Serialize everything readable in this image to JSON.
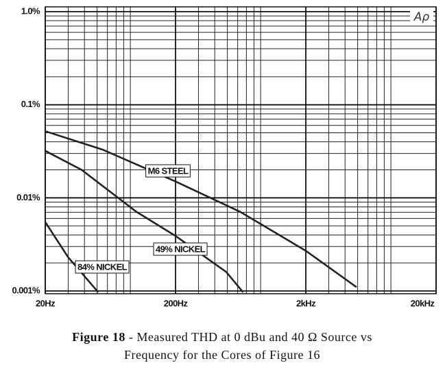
{
  "chart_data": {
    "type": "line",
    "log_x": true,
    "log_y": true,
    "grid": true,
    "minor_grid": true,
    "logo": "Aρ",
    "caption_label": "Figure 18",
    "caption_lines": [
      "- Measured THD at 0 dBu and 40 Ω Source vs",
      "Frequency for the Cores of Figure 16"
    ],
    "xlim": [
      20,
      20000
    ],
    "ylim": [
      0.001,
      1
    ],
    "xticks": [
      {
        "value": 20,
        "label": "20Hz"
      },
      {
        "value": 200,
        "label": "200Hz"
      },
      {
        "value": 2000,
        "label": "2kHz"
      },
      {
        "value": 20000,
        "label": "20kHz"
      }
    ],
    "yticks": [
      {
        "value": 0.001,
        "label": "0.001%"
      },
      {
        "value": 0.01,
        "label": "0.01%"
      },
      {
        "value": 0.1,
        "label": "0.1%"
      },
      {
        "value": 1,
        "label": "1.0%"
      }
    ],
    "series": [
      {
        "name": "M6 STEEL",
        "color": "#222222",
        "x": [
          20,
          55,
          200,
          625,
          2000,
          4900
        ],
        "values": [
          0.052,
          0.033,
          0.015,
          0.0071,
          0.0027,
          0.0011
        ]
      },
      {
        "name": "49% NICKEL",
        "color": "#222222",
        "x": [
          20,
          38,
          100,
          200,
          490,
          660
        ],
        "values": [
          0.032,
          0.02,
          0.0071,
          0.0039,
          0.0016,
          0.00097
        ]
      },
      {
        "name": "84% NICKEL",
        "color": "#222222",
        "x": [
          20,
          30,
          51
        ],
        "values": [
          0.0055,
          0.0023,
          0.00097
        ]
      }
    ]
  }
}
